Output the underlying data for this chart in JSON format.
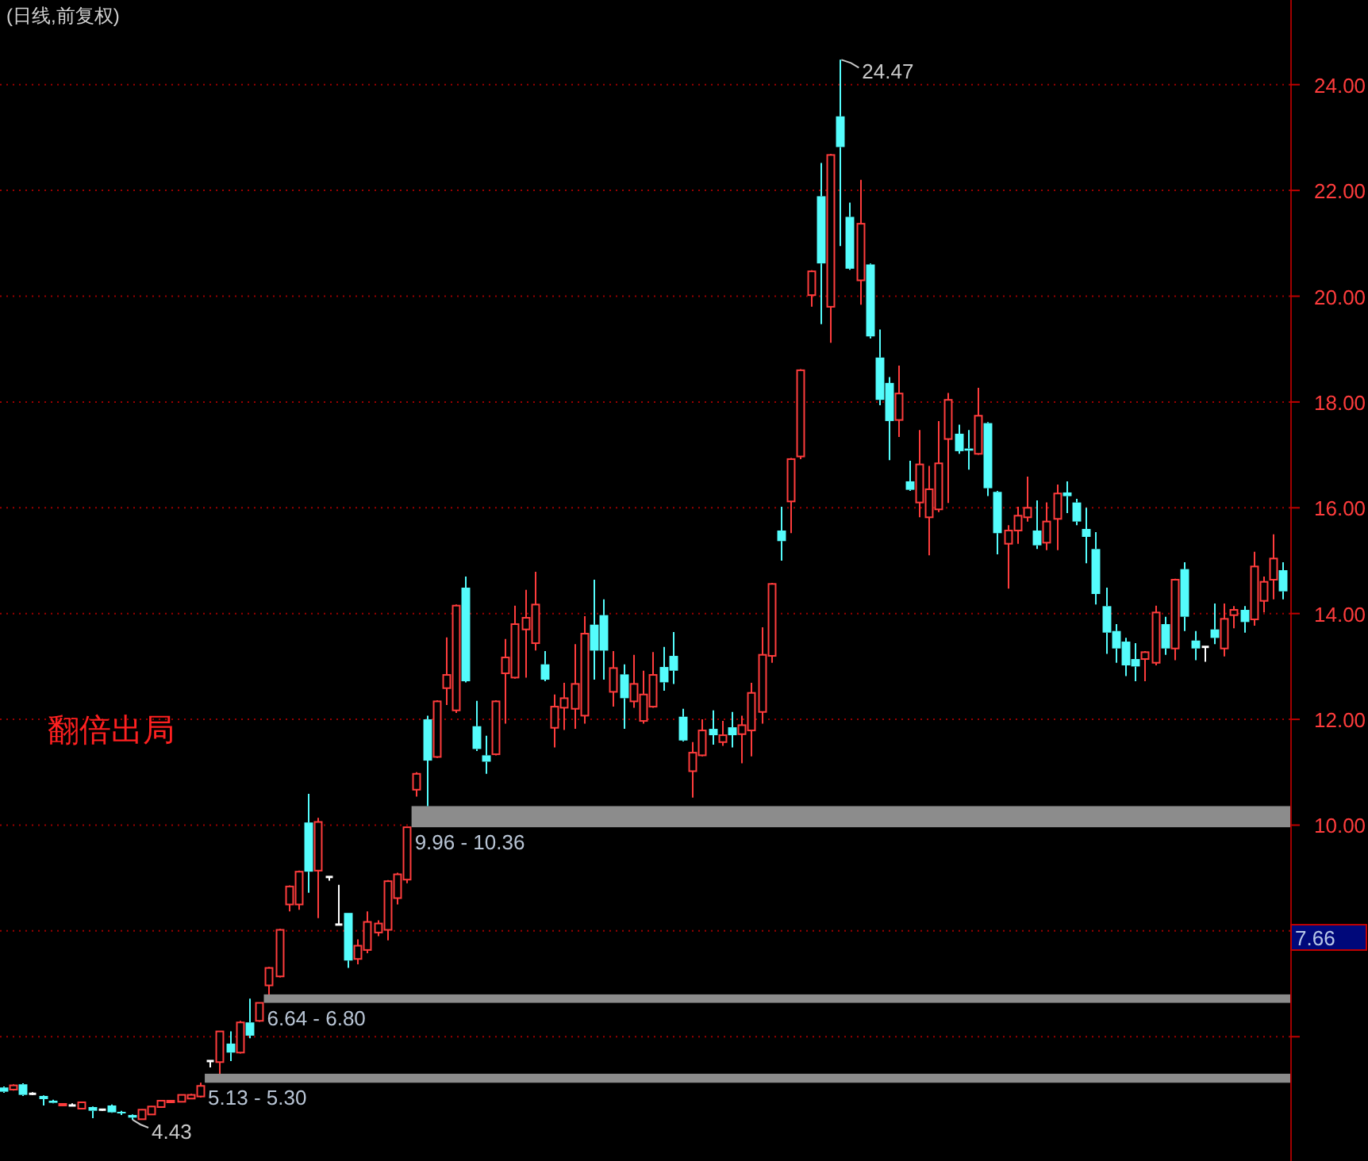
{
  "chart_data": {
    "type": "candlestick",
    "title": "(日线,前复权)",
    "categories": [
      null,
      null,
      null,
      null,
      null,
      null,
      null,
      null,
      null,
      null,
      null,
      null,
      null,
      null,
      null,
      null,
      null,
      null,
      null,
      null,
      null,
      null,
      null,
      null,
      null,
      null,
      null,
      null,
      null,
      null,
      null,
      null,
      null,
      null,
      null,
      null,
      null,
      null,
      null,
      null,
      null,
      null,
      null,
      null,
      null,
      null,
      null,
      null,
      null,
      null,
      null,
      null,
      null,
      null,
      null,
      null,
      null,
      null,
      null,
      null,
      null,
      null,
      null,
      null,
      null,
      null,
      null,
      null,
      null,
      null,
      null,
      null,
      null,
      null,
      null,
      null,
      null,
      null,
      null,
      null,
      null,
      null,
      null,
      null,
      null,
      null,
      null,
      null,
      null,
      null,
      null,
      null,
      null,
      null,
      null,
      null,
      null,
      null,
      null,
      null,
      null,
      null,
      null,
      null,
      null,
      null,
      null,
      null,
      null,
      null,
      null,
      null,
      null,
      null,
      null,
      null,
      null,
      null,
      null,
      null,
      null,
      null,
      null,
      null,
      null,
      null,
      null,
      null,
      null,
      null,
      null
    ],
    "ohlc": [
      [
        5.04,
        5.06,
        4.94,
        4.96
      ],
      [
        5.0,
        5.1,
        4.98,
        5.08
      ],
      [
        5.1,
        5.12,
        4.88,
        4.9
      ],
      [
        4.92,
        4.95,
        4.9,
        4.92
      ],
      [
        4.88,
        4.89,
        4.7,
        4.82
      ],
      [
        4.79,
        4.81,
        4.74,
        4.75
      ],
      [
        4.7,
        4.74,
        4.69,
        4.73
      ],
      [
        4.7,
        4.74,
        4.7,
        4.7
      ],
      [
        4.64,
        4.76,
        4.63,
        4.76
      ],
      [
        4.67,
        4.68,
        4.46,
        4.6
      ],
      [
        4.62,
        4.64,
        4.6,
        4.62
      ],
      [
        4.7,
        4.72,
        4.56,
        4.57
      ],
      [
        4.58,
        4.6,
        4.52,
        4.55
      ],
      [
        4.52,
        4.53,
        4.43,
        4.47
      ],
      [
        4.44,
        4.63,
        4.44,
        4.62
      ],
      [
        4.53,
        4.69,
        4.52,
        4.68
      ],
      [
        4.67,
        4.8,
        4.66,
        4.79
      ],
      [
        4.76,
        4.8,
        4.75,
        4.79
      ],
      [
        4.77,
        4.91,
        4.76,
        4.9
      ],
      [
        4.83,
        4.92,
        4.82,
        4.9
      ],
      [
        4.87,
        5.13,
        4.85,
        5.07
      ],
      [
        5.54,
        5.54,
        5.42,
        5.54
      ],
      [
        5.52,
        6.1,
        5.3,
        6.1
      ],
      [
        5.87,
        6.1,
        5.54,
        5.7
      ],
      [
        5.7,
        6.3,
        5.68,
        6.27
      ],
      [
        6.27,
        6.72,
        5.97,
        6.02
      ],
      [
        6.3,
        6.64,
        6.28,
        6.64
      ],
      [
        6.97,
        7.32,
        6.8,
        7.3
      ],
      [
        7.14,
        8.04,
        7.12,
        8.02
      ],
      [
        8.5,
        8.86,
        8.37,
        8.84
      ],
      [
        8.5,
        9.14,
        8.4,
        9.12
      ],
      [
        10.05,
        10.59,
        8.72,
        9.12
      ],
      [
        9.14,
        10.14,
        8.24,
        10.06
      ],
      [
        9.02,
        9.02,
        8.95,
        9.02
      ],
      [
        8.12,
        8.87,
        8.12,
        8.12
      ],
      [
        8.34,
        8.34,
        7.3,
        7.44
      ],
      [
        7.47,
        7.84,
        7.37,
        7.72
      ],
      [
        7.64,
        8.37,
        7.58,
        8.17
      ],
      [
        7.97,
        8.2,
        7.9,
        8.14
      ],
      [
        8.02,
        8.96,
        7.82,
        8.94
      ],
      [
        8.62,
        9.1,
        8.5,
        9.07
      ],
      [
        8.97,
        9.96,
        8.9,
        9.96
      ],
      [
        10.67,
        11.0,
        10.54,
        10.97
      ],
      [
        12.0,
        12.07,
        10.36,
        11.22
      ],
      [
        11.29,
        12.36,
        11.27,
        12.34
      ],
      [
        12.59,
        13.55,
        12.27,
        12.84
      ],
      [
        12.17,
        14.17,
        12.12,
        14.15
      ],
      [
        14.49,
        14.7,
        12.7,
        12.72
      ],
      [
        11.87,
        12.35,
        11.4,
        11.44
      ],
      [
        11.32,
        11.69,
        10.97,
        11.2
      ],
      [
        11.34,
        12.36,
        11.32,
        12.34
      ],
      [
        12.87,
        13.52,
        11.92,
        13.17
      ],
      [
        12.79,
        14.15,
        12.77,
        13.8
      ],
      [
        13.7,
        14.45,
        12.79,
        13.92
      ],
      [
        13.44,
        14.79,
        13.3,
        14.17
      ],
      [
        13.04,
        13.29,
        12.72,
        12.75
      ],
      [
        11.84,
        12.47,
        11.47,
        12.24
      ],
      [
        12.22,
        12.69,
        11.8,
        12.4
      ],
      [
        12.2,
        13.42,
        11.82,
        12.67
      ],
      [
        12.07,
        13.95,
        11.92,
        13.62
      ],
      [
        13.79,
        14.64,
        12.75,
        13.3
      ],
      [
        13.97,
        14.27,
        12.75,
        13.3
      ],
      [
        12.52,
        13.29,
        12.24,
        12.97
      ],
      [
        12.85,
        13.04,
        11.82,
        12.4
      ],
      [
        12.34,
        13.22,
        12.22,
        12.67
      ],
      [
        11.97,
        12.92,
        11.92,
        12.47
      ],
      [
        12.24,
        13.27,
        12.22,
        12.84
      ],
      [
        12.99,
        13.37,
        12.54,
        12.7
      ],
      [
        13.2,
        13.65,
        12.67,
        12.92
      ],
      [
        12.05,
        12.2,
        11.58,
        11.6
      ],
      [
        11.02,
        11.57,
        10.52,
        11.37
      ],
      [
        11.32,
        12.0,
        11.3,
        11.79
      ],
      [
        11.82,
        12.17,
        11.52,
        11.7
      ],
      [
        11.57,
        11.97,
        11.5,
        11.7
      ],
      [
        11.85,
        12.14,
        11.47,
        11.7
      ],
      [
        11.72,
        12.07,
        11.17,
        11.89
      ],
      [
        11.79,
        12.69,
        11.3,
        12.5
      ],
      [
        12.14,
        13.74,
        11.92,
        13.22
      ],
      [
        13.2,
        14.58,
        13.07,
        14.56
      ],
      [
        15.57,
        16.02,
        15.0,
        15.37
      ],
      [
        16.12,
        16.94,
        15.52,
        16.92
      ],
      [
        16.97,
        18.62,
        16.92,
        18.6
      ],
      [
        20.02,
        20.49,
        19.8,
        20.47
      ],
      [
        21.89,
        22.52,
        19.47,
        20.62
      ],
      [
        19.8,
        22.69,
        19.12,
        22.67
      ],
      [
        23.4,
        24.47,
        20.95,
        22.82
      ],
      [
        21.5,
        21.77,
        20.5,
        20.52
      ],
      [
        20.3,
        22.2,
        19.84,
        21.37
      ],
      [
        20.6,
        20.62,
        19.2,
        19.24
      ],
      [
        18.84,
        19.37,
        17.94,
        18.04
      ],
      [
        18.36,
        18.47,
        16.9,
        17.64
      ],
      [
        17.66,
        18.69,
        17.34,
        18.16
      ],
      [
        16.5,
        16.89,
        16.32,
        16.34
      ],
      [
        16.1,
        17.47,
        15.82,
        16.82
      ],
      [
        15.82,
        16.79,
        15.1,
        16.35
      ],
      [
        15.97,
        17.64,
        15.92,
        16.84
      ],
      [
        17.3,
        18.17,
        16.09,
        18.04
      ],
      [
        17.4,
        17.57,
        17.02,
        17.07
      ],
      [
        17.12,
        17.47,
        16.72,
        17.08
      ],
      [
        17.02,
        18.27,
        17.0,
        17.74
      ],
      [
        17.6,
        17.62,
        16.22,
        16.37
      ],
      [
        16.3,
        16.32,
        15.12,
        15.52
      ],
      [
        15.32,
        15.67,
        14.47,
        15.57
      ],
      [
        15.57,
        16.02,
        15.32,
        15.85
      ],
      [
        15.82,
        16.59,
        15.74,
        16.0
      ],
      [
        15.57,
        16.14,
        15.22,
        15.29
      ],
      [
        15.34,
        16.1,
        15.2,
        15.74
      ],
      [
        15.79,
        16.44,
        15.2,
        16.27
      ],
      [
        16.29,
        16.5,
        15.9,
        16.22
      ],
      [
        16.1,
        16.17,
        15.67,
        15.74
      ],
      [
        15.6,
        16.0,
        14.95,
        15.45
      ],
      [
        15.22,
        15.54,
        14.17,
        14.37
      ],
      [
        14.14,
        14.49,
        13.24,
        13.64
      ],
      [
        13.67,
        13.8,
        13.07,
        13.34
      ],
      [
        13.47,
        13.54,
        12.82,
        13.02
      ],
      [
        13.14,
        13.44,
        12.72,
        13.0
      ],
      [
        13.14,
        13.29,
        12.72,
        13.27
      ],
      [
        13.07,
        14.15,
        13.02,
        14.02
      ],
      [
        13.8,
        13.94,
        13.22,
        13.34
      ],
      [
        13.34,
        14.66,
        13.12,
        14.64
      ],
      [
        14.84,
        14.97,
        13.67,
        13.94
      ],
      [
        13.49,
        13.67,
        13.12,
        13.34
      ],
      [
        13.37,
        13.37,
        13.09,
        13.37
      ],
      [
        13.7,
        14.19,
        13.42,
        13.54
      ],
      [
        13.34,
        14.19,
        13.19,
        13.9
      ],
      [
        13.97,
        14.14,
        13.72,
        14.07
      ],
      [
        14.07,
        14.14,
        13.64,
        13.84
      ],
      [
        13.89,
        15.17,
        13.77,
        14.89
      ],
      [
        14.24,
        14.7,
        14.02,
        14.6
      ],
      [
        14.64,
        15.5,
        14.27,
        15.04
      ],
      [
        14.82,
        14.97,
        14.27,
        14.42
      ]
    ],
    "colors": [
      "#54fcfc",
      "#ff3c3c",
      "#54fcfc",
      "#ffffff",
      "#54fcfc",
      "#54fcfc",
      "#ff3c3c",
      "#ffffff",
      "#ff3c3c",
      "#54fcfc",
      "#ffffff",
      "#54fcfc",
      "#54fcfc",
      "#54fcfc",
      "#ff3c3c",
      "#ff3c3c",
      "#ff3c3c",
      "#ff3c3c",
      "#ff3c3c",
      "#ff3c3c",
      "#ff3c3c",
      "#ffffff",
      "#ff3c3c",
      "#54fcfc",
      "#ff3c3c",
      "#54fcfc",
      "#ff3c3c",
      "#ff3c3c",
      "#ff3c3c",
      "#ff3c3c",
      "#ff3c3c",
      "#54fcfc",
      "#ff3c3c",
      "#ffffff",
      "#ffffff",
      "#54fcfc",
      "#ff3c3c",
      "#ff3c3c",
      "#ff3c3c",
      "#ff3c3c",
      "#ff3c3c",
      "#ff3c3c",
      "#ff3c3c",
      "#54fcfc",
      "#ff3c3c",
      "#ff3c3c",
      "#ff3c3c",
      "#54fcfc",
      "#54fcfc",
      "#54fcfc",
      "#ff3c3c",
      "#ff3c3c",
      "#ff3c3c",
      "#ff3c3c",
      "#ff3c3c",
      "#54fcfc",
      "#ff3c3c",
      "#ff3c3c",
      "#ff3c3c",
      "#ff3c3c",
      "#54fcfc",
      "#54fcfc",
      "#ff3c3c",
      "#54fcfc",
      "#ff3c3c",
      "#ff3c3c",
      "#ff3c3c",
      "#54fcfc",
      "#54fcfc",
      "#54fcfc",
      "#ff3c3c",
      "#ff3c3c",
      "#54fcfc",
      "#ff3c3c",
      "#54fcfc",
      "#ff3c3c",
      "#ff3c3c",
      "#ff3c3c",
      "#ff3c3c",
      "#54fcfc",
      "#ff3c3c",
      "#ff3c3c",
      "#ff3c3c",
      "#54fcfc",
      "#ff3c3c",
      "#54fcfc",
      "#54fcfc",
      "#ff3c3c",
      "#54fcfc",
      "#54fcfc",
      "#54fcfc",
      "#ff3c3c",
      "#54fcfc",
      "#ff3c3c",
      "#ff3c3c",
      "#ff3c3c",
      "#ff3c3c",
      "#54fcfc",
      "#54fcfc",
      "#ff3c3c",
      "#54fcfc",
      "#54fcfc",
      "#ff3c3c",
      "#ff3c3c",
      "#ff3c3c",
      "#54fcfc",
      "#ff3c3c",
      "#ff3c3c",
      "#54fcfc",
      "#54fcfc",
      "#54fcfc",
      "#54fcfc",
      "#54fcfc",
      "#54fcfc",
      "#54fcfc",
      "#54fcfc",
      "#ff3c3c",
      "#ff3c3c",
      "#54fcfc",
      "#ff3c3c",
      "#54fcfc",
      "#54fcfc",
      "#ffffff",
      "#54fcfc",
      "#ff3c3c",
      "#ff3c3c",
      "#54fcfc",
      "#ff3c3c",
      "#ff3c3c",
      "#ff3c3c",
      "#54fcfc"
    ],
    "ylim": [
      3.65,
      25.6
    ],
    "yticks": [
      {
        "value": 6,
        "label": null
      },
      {
        "value": 8,
        "label": null
      },
      {
        "value": 10,
        "label": "10.00"
      },
      {
        "value": 12,
        "label": "12.00"
      },
      {
        "value": 14,
        "label": "14.00"
      },
      {
        "value": 16,
        "label": "16.00"
      },
      {
        "value": 18,
        "label": "18.00"
      },
      {
        "value": 20,
        "label": "20.00"
      },
      {
        "value": 22,
        "label": "22.00"
      },
      {
        "value": 24,
        "label": "24.00"
      }
    ],
    "grid": "y",
    "tick_labels": "y",
    "bands": [
      {
        "axis": "y",
        "from": 9.96,
        "to": 10.36,
        "label": "9.96 - 10.36",
        "color": "#8c8c8c"
      },
      {
        "axis": "y",
        "from": 6.64,
        "to": 6.8,
        "label": "6.64 - 6.80",
        "color": "#8c8c8c"
      },
      {
        "axis": "y",
        "from": 5.13,
        "to": 5.3,
        "label": "5.13 - 5.30",
        "color": "#8c8c8c"
      }
    ],
    "annotations": [
      "翻倍出局",
      "24.47",
      "4.43",
      "7.66"
    ]
  }
}
